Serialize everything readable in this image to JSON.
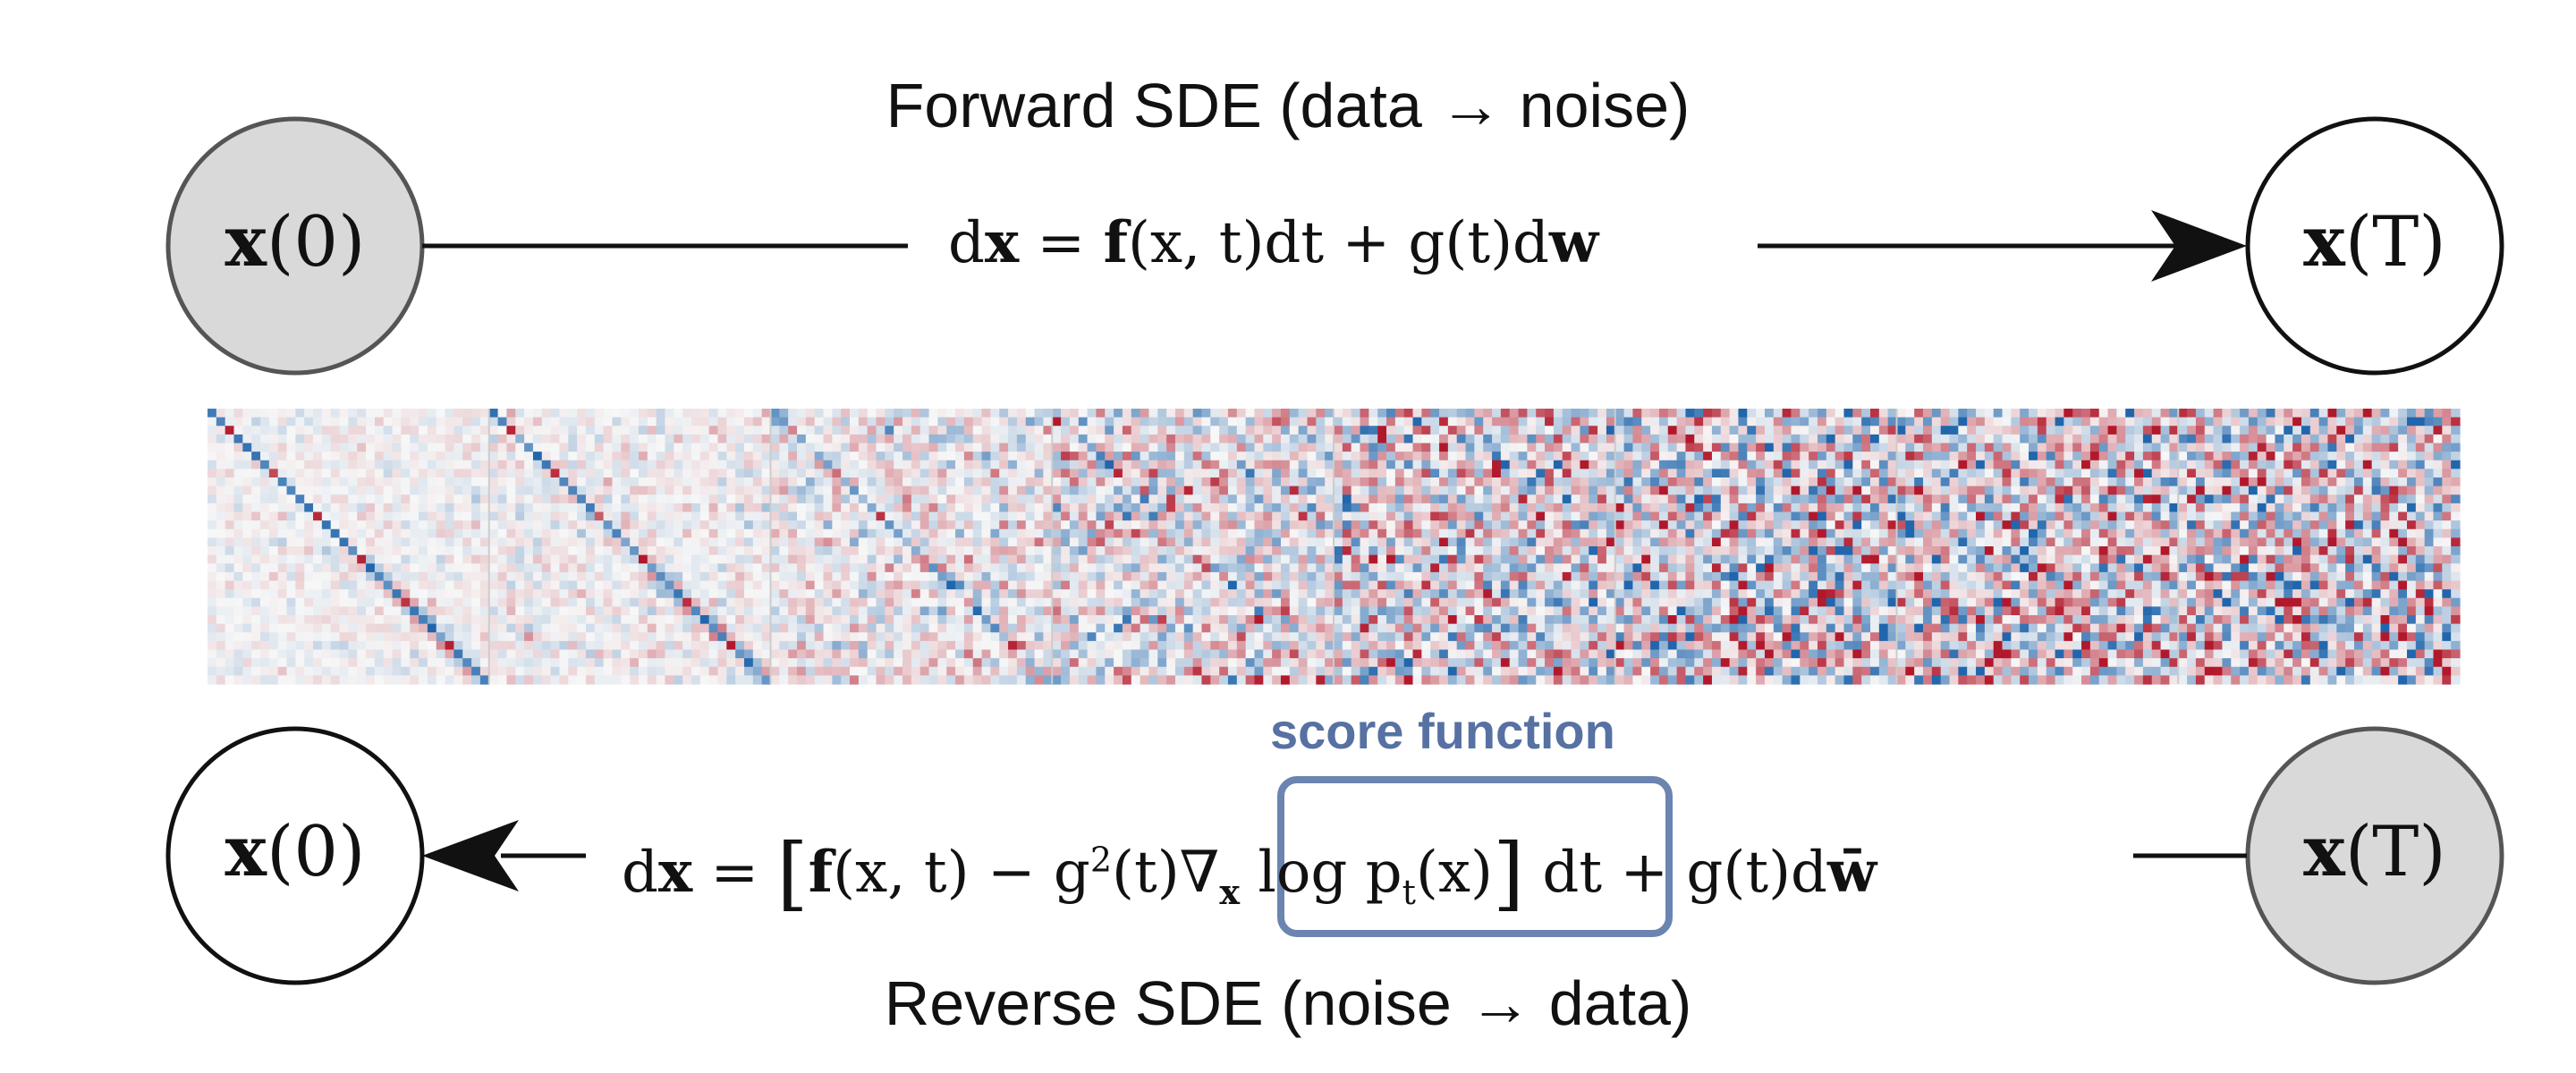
{
  "forward": {
    "title": "Forward SDE (data → noise)",
    "eq_dx": "d",
    "eq_x": "x",
    "eq_eq": " = ",
    "eq_f": "f",
    "eq_args": "(x, t)dt + g(t)d",
    "eq_w": "w",
    "start_x": "x",
    "start_arg": "(0)",
    "end_x": "x",
    "end_arg": "(T)"
  },
  "reverse": {
    "title": "Reverse SDE (noise → data)",
    "score_label": "score function",
    "eq_dx": "d",
    "eq_x": "x",
    "eq_eq": " = ",
    "eq_lb": "[",
    "eq_f": "f",
    "eq_mid": "(x, t) − g",
    "eq_sq": "2",
    "eq_mid2": "(t)",
    "eq_nabla": "∇",
    "eq_nsub": "x",
    "eq_log": " log p",
    "eq_tsub": "t",
    "eq_px": "(x)",
    "eq_rb": "]",
    "eq_tail": " dt + g(t)d",
    "eq_wbar": "w̄",
    "start_x": "x",
    "start_arg": "(T)",
    "end_x": "x",
    "end_arg": "(0)"
  },
  "colors": {
    "filled_node": "#d9d9d9",
    "score_box": "#6b84b0",
    "score_text": "#5671a2",
    "heat_red": "#b2182b",
    "heat_blue": "#2166ac"
  },
  "strip": {
    "panels": 8,
    "grid": 32,
    "noise_levels": [
      0.04,
      0.12,
      0.3,
      0.6,
      0.85,
      1.0,
      1.0,
      1.0
    ]
  }
}
